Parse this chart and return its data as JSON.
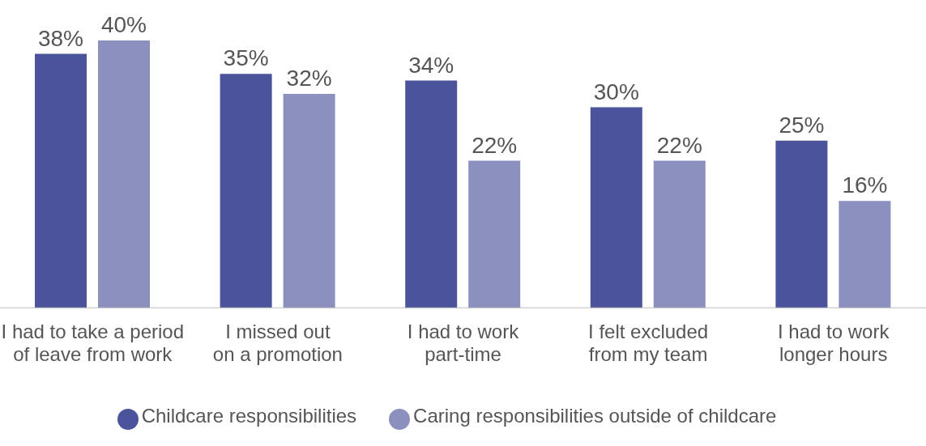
{
  "chart_data": {
    "type": "bar",
    "categories": [
      "I had to take a period of leave from work",
      "I missed out on a promotion",
      "I had to work part-time",
      "I felt excluded from my team",
      "I had to work longer hours"
    ],
    "series": [
      {
        "name": "Childcare responsibilities",
        "color": "#4b539b",
        "values": [
          38,
          35,
          34,
          30,
          25
        ],
        "value_labels": [
          "38%",
          "35%",
          "34%",
          "30%",
          "25%"
        ]
      },
      {
        "name": "Caring responsibilities outside of childcare",
        "color": "#8b90bf",
        "values": [
          40,
          32,
          22,
          22,
          16
        ],
        "value_labels": [
          "40%",
          "32%",
          "22%",
          "22%",
          "16%"
        ]
      }
    ],
    "legend": "bottom",
    "grid": false
  }
}
